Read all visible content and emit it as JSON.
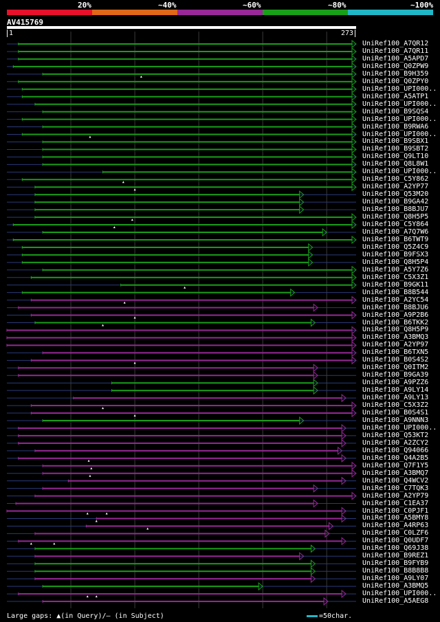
{
  "legend": {
    "segments": [
      {
        "label": "20%",
        "color": "#e8102a"
      },
      {
        "label": "~40%",
        "color": "#e06818"
      },
      {
        "label": "~60%",
        "color": "#982898"
      },
      {
        "label": "~80%",
        "color": "#18a018"
      },
      {
        "label": "~100%",
        "color": "#20b8c8"
      }
    ]
  },
  "query": {
    "name": "AV415769",
    "start": "1",
    "end": "273"
  },
  "hits": [
    {
      "name": "UniRef100_A7QR12",
      "s": 9,
      "e": 273,
      "c": "g",
      "d": 0
    },
    {
      "name": "UniRef100_A7QR11",
      "s": 9,
      "e": 273,
      "c": "g",
      "d": 0
    },
    {
      "name": "UniRef100_A5APD7",
      "s": 9,
      "e": 273,
      "c": "g",
      "d": 0
    },
    {
      "name": "UniRef100_Q0ZPW9",
      "s": 5,
      "e": 273,
      "c": "g",
      "d": 0
    },
    {
      "name": "UniRef100_B9H359",
      "s": 28,
      "e": 273,
      "c": "g",
      "d": 0,
      "tri": [
        105
      ]
    },
    {
      "name": "UniRef100_Q0ZPY0",
      "s": 9,
      "e": 273,
      "c": "g",
      "d": 0
    },
    {
      "name": "UniRef100_UPI000..",
      "s": 12,
      "e": 273,
      "c": "g",
      "d": 0
    },
    {
      "name": "UniRef100_A5ATP1",
      "s": 12,
      "e": 273,
      "c": "g",
      "d": 0
    },
    {
      "name": "UniRef100_UPI000..",
      "s": 22,
      "e": 273,
      "c": "g",
      "d": 0
    },
    {
      "name": "UniRef100_B9SQS4",
      "s": 28,
      "e": 273,
      "c": "g",
      "d": 0
    },
    {
      "name": "UniRef100_UPI000..",
      "s": 12,
      "e": 273,
      "c": "g",
      "d": 0
    },
    {
      "name": "UniRef100_B9RWA6",
      "s": 28,
      "e": 273,
      "c": "g",
      "d": 0
    },
    {
      "name": "UniRef100_UPI000..",
      "s": 12,
      "e": 273,
      "c": "g",
      "d": 0,
      "tri": [
        65
      ]
    },
    {
      "name": "UniRef100_B9SBX1",
      "s": 28,
      "e": 273,
      "c": "g",
      "d": 0
    },
    {
      "name": "UniRef100_B9SBT2",
      "s": 28,
      "e": 273,
      "c": "g",
      "d": 0
    },
    {
      "name": "UniRef100_Q9LT10",
      "s": 28,
      "e": 273,
      "c": "g",
      "d": 0
    },
    {
      "name": "UniRef100_Q8L8W1",
      "s": 28,
      "e": 273,
      "c": "g",
      "d": 0
    },
    {
      "name": "UniRef100_UPI000..",
      "s": 75,
      "e": 273,
      "c": "g",
      "d": 0
    },
    {
      "name": "UniRef100_C5Y862",
      "s": 12,
      "e": 273,
      "c": "g",
      "d": 0,
      "tri": [
        91
      ]
    },
    {
      "name": "UniRef100_A2YP77",
      "s": 22,
      "e": 273,
      "c": "g",
      "d": 0,
      "tri": [
        100
      ]
    },
    {
      "name": "UniRef100_Q53M20",
      "s": 22,
      "e": 232,
      "c": "g",
      "d": 0
    },
    {
      "name": "UniRef100_B9GA42",
      "s": 22,
      "e": 232,
      "c": "g",
      "d": 0
    },
    {
      "name": "UniRef100_B8BJU7",
      "s": 22,
      "e": 232,
      "c": "g",
      "d": 0
    },
    {
      "name": "UniRef100_Q8H5P5",
      "s": 22,
      "e": 273,
      "c": "g",
      "d": 0,
      "tri": [
        98
      ]
    },
    {
      "name": "UniRef100_C5Y864",
      "s": 5,
      "e": 273,
      "c": "g",
      "d": 0,
      "tri": [
        84
      ]
    },
    {
      "name": "UniRef100_A7Q7W6",
      "s": 28,
      "e": 250,
      "c": "g",
      "d": 0
    },
    {
      "name": "UniRef100_B6TWT9",
      "s": 5,
      "e": 273,
      "c": "g",
      "d": 0
    },
    {
      "name": "UniRef100_Q5Z4C9",
      "s": 12,
      "e": 239,
      "c": "g",
      "d": 0
    },
    {
      "name": "UniRef100_B9FSX3",
      "s": 12,
      "e": 239,
      "c": "g",
      "d": 0
    },
    {
      "name": "UniRef100_Q8H5P4",
      "s": 12,
      "e": 239,
      "c": "g",
      "d": 0
    },
    {
      "name": "UniRef100_A5Y7Z6",
      "s": 28,
      "e": 273,
      "c": "g",
      "d": 0
    },
    {
      "name": "UniRef100_C5X3Z1",
      "s": 19,
      "e": 273,
      "c": "g",
      "d": 0
    },
    {
      "name": "UniRef100_B9GK11",
      "s": 89,
      "e": 273,
      "c": "g",
      "d": 0,
      "tri": [
        139
      ]
    },
    {
      "name": "UniRef100_B8B544",
      "s": 12,
      "e": 225,
      "c": "g",
      "d": 0
    },
    {
      "name": "UniRef100_A2YC54",
      "s": 19,
      "e": 273,
      "c": "p",
      "d": 0,
      "tri": [
        92
      ]
    },
    {
      "name": "UniRef100_B8BJU6",
      "s": 9,
      "e": 243,
      "c": "p",
      "d": 0
    },
    {
      "name": "UniRef100_A9P2B6",
      "s": 19,
      "e": 273,
      "c": "p",
      "d": 0,
      "tri": [
        100
      ]
    },
    {
      "name": "UniRef100_B6TKK2",
      "s": 22,
      "e": 241,
      "c": "g",
      "d": 0,
      "tri": [
        75
      ]
    },
    {
      "name": "UniRef100_Q8H5P9",
      "s": 0,
      "e": 273,
      "c": "p",
      "d": 0
    },
    {
      "name": "UniRef100_A3BMQ3",
      "s": 0,
      "e": 273,
      "c": "p",
      "d": 0
    },
    {
      "name": "UniRef100_A2YP97",
      "s": 0,
      "e": 273,
      "c": "p",
      "d": 0
    },
    {
      "name": "UniRef100_B6TXN5",
      "s": 28,
      "e": 273,
      "c": "p",
      "d": 0
    },
    {
      "name": "UniRef100_B0S4S2",
      "s": 19,
      "e": 273,
      "c": "p",
      "d": 0,
      "tri": [
        100
      ]
    },
    {
      "name": "UniRef100_Q0ITM2",
      "s": 9,
      "e": 243,
      "c": "p",
      "d": 0
    },
    {
      "name": "UniRef100_B9GA39",
      "s": 9,
      "e": 243,
      "c": "p",
      "d": 0
    },
    {
      "name": "UniRef100_A9PZZ6",
      "s": 82,
      "e": 243,
      "c": "g",
      "d": 0
    },
    {
      "name": "UniRef100_A9LY14",
      "s": 82,
      "e": 243,
      "c": "g",
      "d": 0
    },
    {
      "name": "UniRef100_A9LY13",
      "s": 52,
      "e": 265,
      "c": "p",
      "d": 0
    },
    {
      "name": "UniRef100_C5X3Z2",
      "s": 19,
      "e": 273,
      "c": "p",
      "d": 0,
      "tri": [
        75
      ]
    },
    {
      "name": "UniRef100_B0S4S1",
      "s": 19,
      "e": 273,
      "c": "p",
      "d": 0,
      "tri": [
        100
      ]
    },
    {
      "name": "UniRef100_A9NNN3",
      "s": 28,
      "e": 232,
      "c": "g",
      "d": 0
    },
    {
      "name": "UniRef100_UPI000..",
      "s": 9,
      "e": 265,
      "c": "p",
      "d": 0
    },
    {
      "name": "UniRef100_Q53KT2",
      "s": 9,
      "e": 265,
      "c": "p",
      "d": 0
    },
    {
      "name": "UniRef100_A2ZCY2",
      "s": 9,
      "e": 265,
      "c": "p",
      "d": 0
    },
    {
      "name": "UniRef100_Q94066",
      "s": 22,
      "e": 262,
      "c": "p",
      "d": 0
    },
    {
      "name": "UniRef100_Q4A2B5",
      "s": 9,
      "e": 265,
      "c": "p",
      "d": 0,
      "tri": [
        64
      ]
    },
    {
      "name": "UniRef100_Q7F1Y5",
      "s": 28,
      "e": 273,
      "c": "p",
      "d": 0,
      "tri": [
        66
      ]
    },
    {
      "name": "UniRef100_A3BMQ7",
      "s": 28,
      "e": 273,
      "c": "p",
      "d": 0,
      "tri": [
        65
      ]
    },
    {
      "name": "UniRef100_Q4WCV2",
      "s": 48,
      "e": 265,
      "c": "p",
      "d": 0
    },
    {
      "name": "UniRef100_C7TQK3",
      "s": 28,
      "e": 243,
      "c": "p",
      "d": 0
    },
    {
      "name": "UniRef100_A2YP79",
      "s": 22,
      "e": 273,
      "c": "p",
      "d": 0
    },
    {
      "name": "UniRef100_C1EA37",
      "s": 7,
      "e": 243,
      "c": "p",
      "d": 0
    },
    {
      "name": "UniRef100_C0PJF1",
      "s": 0,
      "e": 265,
      "c": "p",
      "d": 0,
      "tri": [
        63,
        78
      ]
    },
    {
      "name": "UniRef100_A5BMY8",
      "s": 70,
      "e": 265,
      "c": "p",
      "d": 0,
      "tri": [
        70
      ]
    },
    {
      "name": "UniRef100_A4RP63",
      "s": 62,
      "e": 255,
      "c": "p",
      "d": 0,
      "tri": [
        110
      ]
    },
    {
      "name": "UniRef100_C0LZF6",
      "s": 22,
      "e": 252,
      "c": "p",
      "d": 0
    },
    {
      "name": "UniRef100_Q0UDF7",
      "s": 9,
      "e": 265,
      "c": "p",
      "d": 0,
      "tri": [
        19,
        37
      ]
    },
    {
      "name": "UniRef100_Q69J38",
      "s": 22,
      "e": 241,
      "c": "g",
      "d": 0
    },
    {
      "name": "UniRef100_B9REZ1",
      "s": 22,
      "e": 232,
      "c": "p",
      "d": 0
    },
    {
      "name": "UniRef100_B9FYB9",
      "s": 22,
      "e": 241,
      "c": "g",
      "d": 0
    },
    {
      "name": "UniRef100_B8B8B8",
      "s": 22,
      "e": 241,
      "c": "g",
      "d": 0
    },
    {
      "name": "UniRef100_A9LY07",
      "s": 22,
      "e": 241,
      "c": "p",
      "d": 0
    },
    {
      "name": "UniRef100_A3BMQ5",
      "s": 28,
      "e": 200,
      "c": "g",
      "d": 0
    },
    {
      "name": "UniRef100_UPI000..",
      "s": 9,
      "e": 265,
      "c": "p",
      "d": 0,
      "tri": [
        63,
        70
      ]
    },
    {
      "name": "UniRef100_A5AEG8",
      "s": 28,
      "e": 251,
      "c": "p",
      "d": 0
    }
  ],
  "footer": {
    "text": "Large gaps: ▲(in Query)/– (in Subject)"
  },
  "scale": {
    "text": "=50char."
  },
  "colors": {
    "green": "#18a018",
    "purple": "#982898",
    "grid": "#3a3a3a",
    "dash": "#2a3a7a"
  }
}
